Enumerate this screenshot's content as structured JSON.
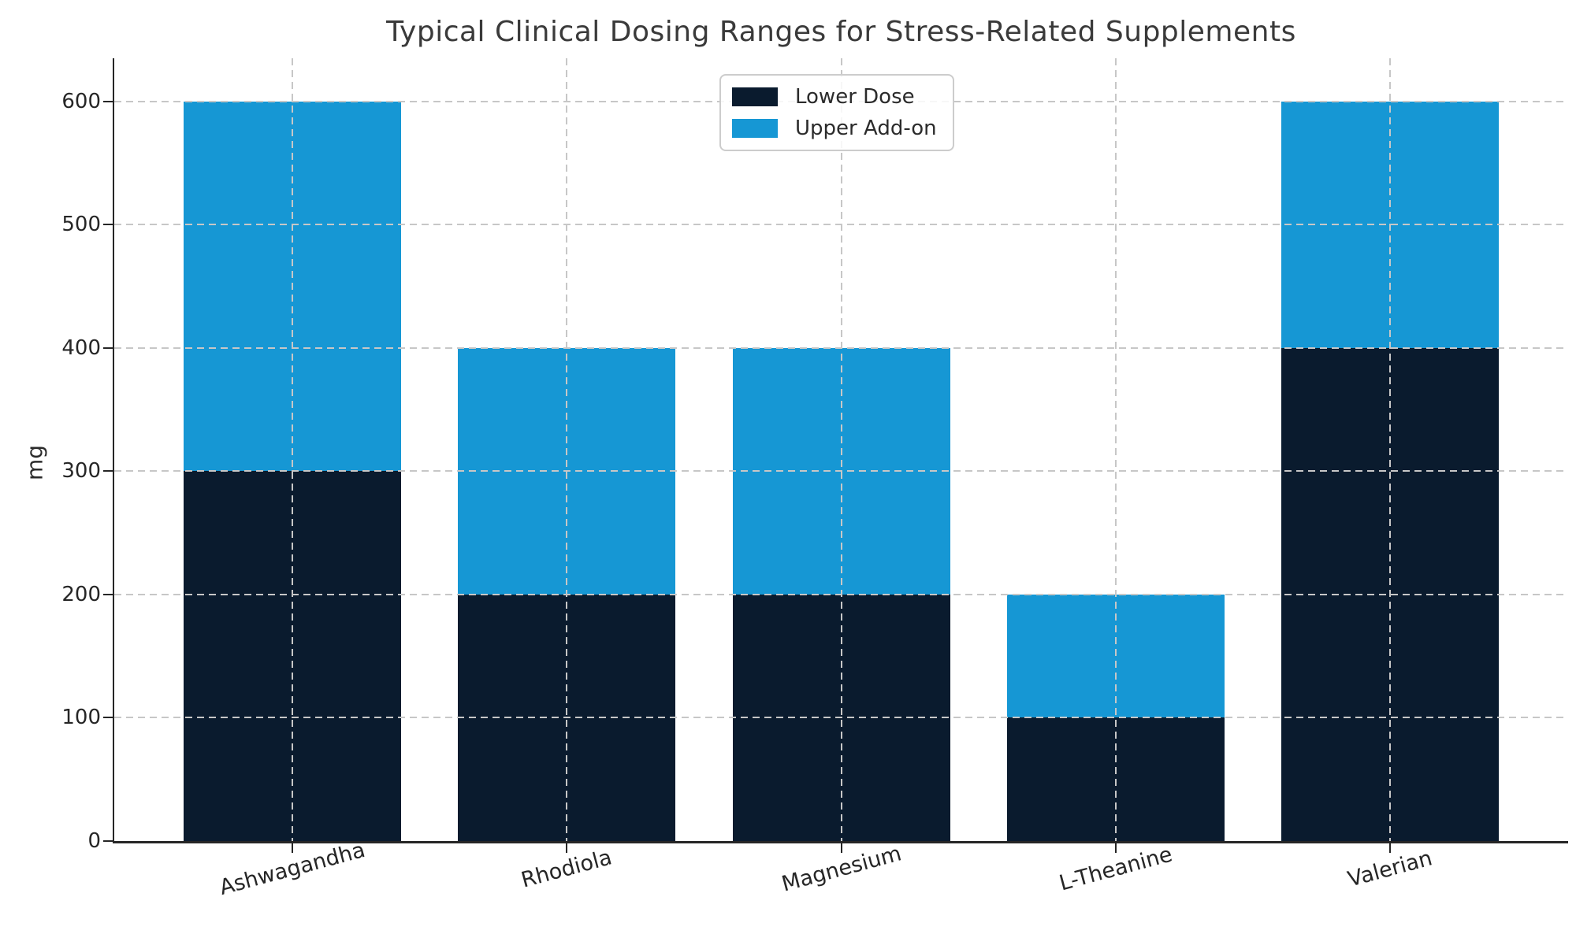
{
  "chart_data": {
    "type": "bar",
    "stacked": true,
    "title": "Typical Clinical Dosing Ranges for Stress-Related Supplements",
    "ylabel": "mg",
    "xlabel": "",
    "categories": [
      "Ashwagandha",
      "Rhodiola",
      "Magnesium",
      "L-Theanine",
      "Valerian"
    ],
    "series": [
      {
        "name": "Lower Dose",
        "color": "#0a1b2e",
        "values": [
          300,
          200,
          200,
          100,
          400
        ]
      },
      {
        "name": "Upper Add-on",
        "color": "#1697d4",
        "values": [
          300,
          200,
          200,
          100,
          200
        ]
      }
    ],
    "stack_totals_mg": [
      600,
      400,
      400,
      200,
      600
    ],
    "ylim": [
      0,
      635
    ],
    "yticks": [
      0,
      100,
      200,
      300,
      400,
      500,
      600
    ],
    "grid": "dashed gridlines on both axes, drawn above bars",
    "legend_position": "upper center",
    "x_tick_rotation_deg": 15,
    "colors": {
      "background": "#ffffff",
      "grid": "#c7c7c7",
      "spine": "#262626",
      "title_text": "#3a3a3a",
      "tick_text": "#262626"
    }
  }
}
